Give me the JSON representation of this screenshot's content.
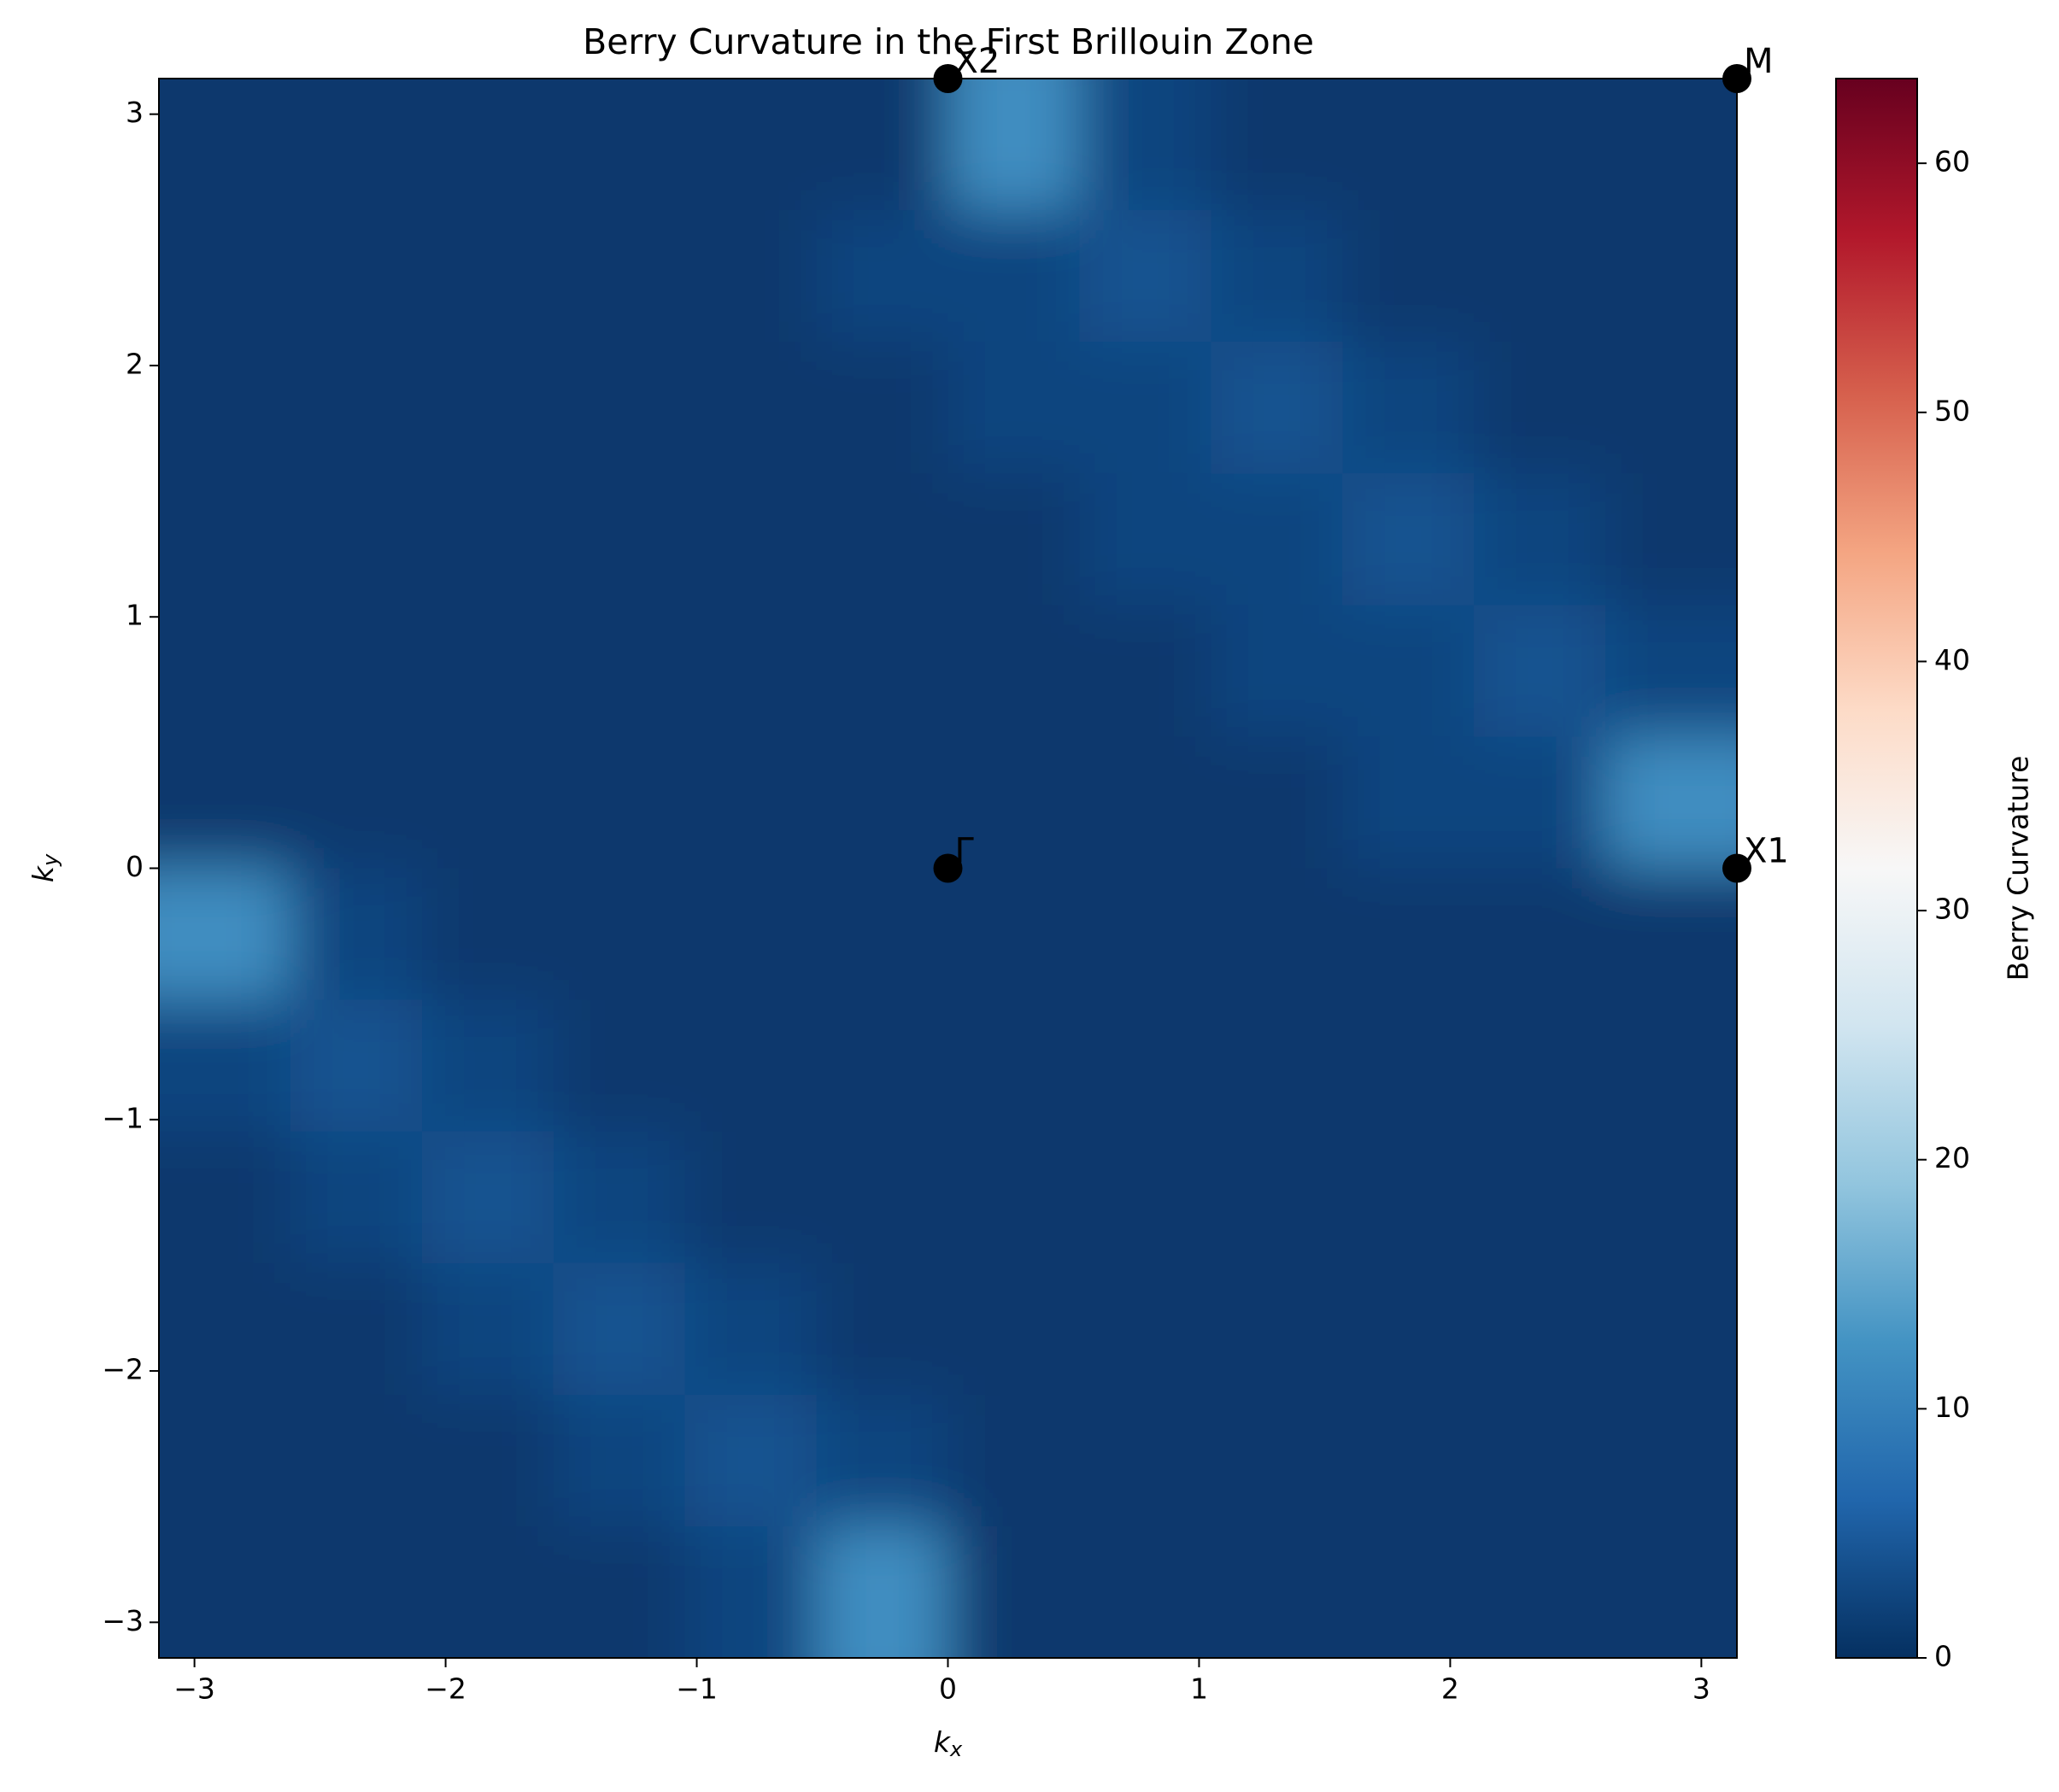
{
  "chart_data": {
    "type": "heatmap",
    "title": "Berry Curvature in the First Brillouin Zone",
    "xlabel": {
      "text": "k",
      "sub": "x"
    },
    "ylabel": {
      "text": "k",
      "sub": "y"
    },
    "xlim": [
      -3.14159,
      3.14159
    ],
    "ylim": [
      -3.14159,
      3.14159
    ],
    "xticks": [
      {
        "value": -3,
        "label": "−3"
      },
      {
        "value": -2,
        "label": "−2"
      },
      {
        "value": -1,
        "label": "−1"
      },
      0,
      1,
      2,
      3
    ],
    "yticks": [
      {
        "value": -3,
        "label": "−3"
      },
      {
        "value": -2,
        "label": "−2"
      },
      {
        "value": -1,
        "label": "−1"
      },
      0,
      1,
      2,
      3
    ],
    "colormap": "RdBu_r",
    "colorbar_label": "Berry Curvature",
    "clim": [
      0,
      63.4
    ],
    "cticks": [
      0,
      10,
      20,
      30,
      40,
      50,
      60
    ],
    "z": [
      [
        1,
        1,
        1,
        1,
        1,
        1,
        12,
        2.5,
        1,
        1,
        1,
        1
      ],
      [
        1,
        1,
        1,
        1,
        1,
        2.5,
        2.5,
        4,
        2.5,
        1,
        1,
        1
      ],
      [
        1,
        1,
        1,
        1,
        1,
        1,
        2.5,
        2.5,
        4,
        2.5,
        1,
        1
      ],
      [
        1,
        1,
        1,
        1,
        1,
        1,
        1,
        2.5,
        2.5,
        4,
        2.5,
        1
      ],
      [
        1,
        1,
        1,
        1,
        1,
        1,
        1,
        1,
        2.5,
        2.5,
        4,
        2.5
      ],
      [
        1,
        1,
        1,
        1,
        1,
        1,
        1,
        1,
        1,
        2.5,
        2.5,
        12
      ],
      [
        12,
        2.5,
        1,
        1,
        1,
        1,
        1,
        1,
        1,
        1,
        1,
        1
      ],
      [
        2.5,
        4,
        2.5,
        1,
        1,
        1,
        1,
        1,
        1,
        1,
        1,
        1
      ],
      [
        1,
        2.5,
        4,
        2.5,
        1,
        1,
        1,
        1,
        1,
        1,
        1,
        1
      ],
      [
        1,
        1,
        2.5,
        4,
        2.5,
        1,
        1,
        1,
        1,
        1,
        1,
        1
      ],
      [
        1,
        1,
        1,
        2.5,
        4,
        2.5,
        1,
        1,
        1,
        1,
        1,
        1
      ],
      [
        1,
        1,
        1,
        1,
        2.5,
        12,
        1,
        1,
        1,
        1,
        1,
        1
      ]
    ],
    "points": [
      {
        "name": "Γ",
        "x": 0,
        "y": 0
      },
      {
        "name": "X1",
        "x": 3.14159,
        "y": 0
      },
      {
        "name": "X2",
        "x": 0,
        "y": 3.14159
      },
      {
        "name": "M",
        "x": 3.14159,
        "y": 3.14159
      }
    ],
    "point_color": "#000000"
  }
}
